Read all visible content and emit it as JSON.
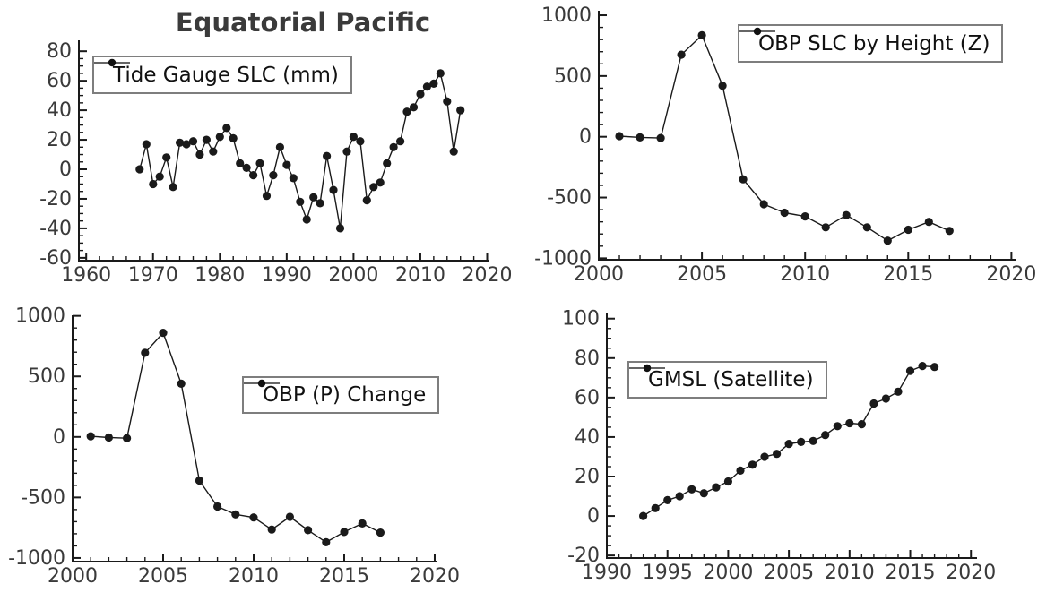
{
  "page": {
    "title": "Equatorial Pacific"
  },
  "chart_data": [
    {
      "id": "tide_gauge",
      "type": "line",
      "legend_label": "Tide Gauge SLC (mm)",
      "legend_position": "upper-left",
      "series_color": "#1a1a1a",
      "marker": "circle",
      "grid": false,
      "x": [
        1968,
        1969,
        1970,
        1971,
        1972,
        1973,
        1974,
        1975,
        1976,
        1977,
        1978,
        1979,
        1980,
        1981,
        1982,
        1983,
        1984,
        1985,
        1986,
        1987,
        1988,
        1989,
        1990,
        1991,
        1992,
        1993,
        1994,
        1995,
        1996,
        1997,
        1998,
        1999,
        2000,
        2001,
        2002,
        2003,
        2004,
        2005,
        2006,
        2007,
        2008,
        2009,
        2010,
        2011,
        2012,
        2013,
        2014,
        2015,
        2016
      ],
      "y": [
        0,
        17,
        -10,
        -5,
        8,
        -12,
        18,
        17,
        19,
        10,
        20,
        12,
        22,
        28,
        21,
        4,
        1,
        -4,
        4,
        -18,
        -4,
        15,
        3,
        -6,
        -22,
        -34,
        -19,
        -23,
        9,
        -14,
        -40,
        12,
        22,
        19,
        -21,
        -12,
        -9,
        4,
        15,
        19,
        39,
        42,
        51,
        56,
        58,
        65,
        46,
        12,
        40
      ],
      "xlim": [
        1958.9,
        2020.2
      ],
      "ylim": [
        -61.9,
        87.4
      ],
      "xticks": [
        1960,
        1970,
        1980,
        1990,
        2000,
        2010,
        2020
      ],
      "yticks": [
        -60,
        -40,
        -20,
        0,
        20,
        40,
        60,
        80
      ],
      "x_minor_step": 2,
      "y_minor_step": 5
    },
    {
      "id": "obp_z",
      "type": "line",
      "legend_label": "OBP SLC by Height (Z)",
      "legend_position": "upper-right",
      "series_color": "#1a1a1a",
      "marker": "circle",
      "grid": false,
      "x": [
        2001,
        2002,
        2003,
        2004,
        2005,
        2006,
        2007,
        2008,
        2009,
        2010,
        2011,
        2012,
        2013,
        2014,
        2015,
        2016,
        2017
      ],
      "y": [
        5,
        -5,
        -10,
        675,
        835,
        420,
        -350,
        -555,
        -625,
        -655,
        -745,
        -645,
        -745,
        -855,
        -765,
        -700,
        -775
      ],
      "xlim": [
        2000,
        2020.2
      ],
      "ylim": [
        -1012,
        1037
      ],
      "xticks": [
        2000,
        2005,
        2010,
        2015,
        2020
      ],
      "yticks": [
        -1000,
        -500,
        0,
        500,
        1000
      ],
      "x_minor_step": 1,
      "y_minor_step": 100
    },
    {
      "id": "obp_p",
      "type": "line",
      "legend_label": "OBP (P) Change",
      "legend_position": "center-right",
      "series_color": "#1a1a1a",
      "marker": "circle",
      "grid": false,
      "x": [
        2001,
        2002,
        2003,
        2004,
        2005,
        2006,
        2007,
        2008,
        2009,
        2010,
        2011,
        2012,
        2013,
        2014,
        2015,
        2016,
        2017
      ],
      "y": [
        5,
        -5,
        -10,
        695,
        860,
        440,
        -360,
        -575,
        -640,
        -665,
        -765,
        -660,
        -770,
        -870,
        -785,
        -715,
        -790
      ],
      "xlim": [
        2000,
        2020.1
      ],
      "ylim": [
        -1030,
        1005
      ],
      "xticks": [
        2000,
        2005,
        2010,
        2015,
        2020
      ],
      "yticks": [
        -1000,
        -500,
        0,
        500,
        1000
      ],
      "x_minor_step": 1,
      "y_minor_step": 100
    },
    {
      "id": "gmsl",
      "type": "line",
      "legend_label": "GMSL (Satellite)",
      "legend_position": "upper-left",
      "series_color": "#1a1a1a",
      "marker": "circle",
      "grid": false,
      "x": [
        1993,
        1994,
        1995,
        1996,
        1997,
        1998,
        1999,
        2000,
        2001,
        2002,
        2003,
        2004,
        2005,
        2006,
        2007,
        2008,
        2009,
        2010,
        2011,
        2012,
        2013,
        2014,
        2015,
        2016,
        2017
      ],
      "y": [
        0,
        4,
        8,
        10,
        13.5,
        11.5,
        14.5,
        17.5,
        23,
        26,
        30,
        31.5,
        36.5,
        37.5,
        38,
        41,
        45.5,
        47,
        46.5,
        57,
        59.5,
        63,
        73.5,
        76,
        75.5
      ],
      "xlim": [
        1990,
        2020.5
      ],
      "ylim": [
        -21.3,
        102.6
      ],
      "xticks": [
        1990,
        1995,
        2000,
        2005,
        2010,
        2015,
        2020
      ],
      "yticks": [
        -20,
        0,
        20,
        40,
        60,
        80,
        100
      ],
      "x_minor_step": 1,
      "y_minor_step": 5
    }
  ]
}
